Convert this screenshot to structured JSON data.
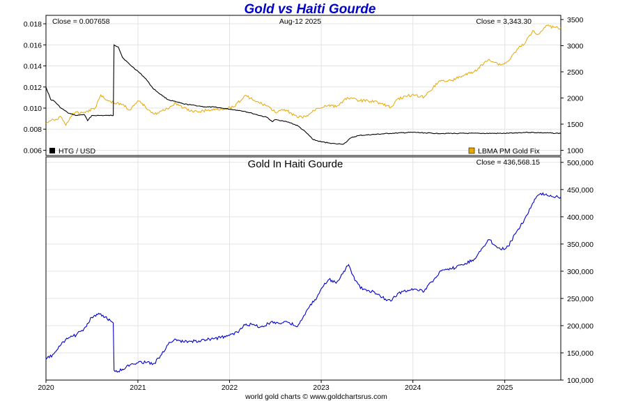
{
  "chart_data": [
    {
      "type": "line",
      "title": "Gold vs Haiti Gourde",
      "date_label": "Aug-12  2025",
      "x_ticks": [
        "2020",
        "2021",
        "2022",
        "2023",
        "2024",
        "2025"
      ],
      "xlim": [
        "2020-01-01",
        "2025-08-12"
      ],
      "left_axis": {
        "ylim": [
          0.0055,
          0.0188
        ],
        "ticks": [
          "0.006",
          "0.008",
          "0.010",
          "0.012",
          "0.014",
          "0.016",
          "0.018"
        ]
      },
      "right_axis": {
        "ylim": [
          900,
          3580
        ],
        "ticks": [
          "1000",
          "1500",
          "2000",
          "2500",
          "3000",
          "3500"
        ]
      },
      "series": [
        {
          "name": "HTG / USD",
          "axis": "left",
          "color": "#000000",
          "close_label": "Close = 0.007658",
          "x": [
            "2020-01-01",
            "2020-01-20",
            "2020-02-01",
            "2020-03-01",
            "2020-04-01",
            "2020-05-01",
            "2020-06-01",
            "2020-06-15",
            "2020-07-01",
            "2020-08-01",
            "2020-09-01",
            "2020-09-25",
            "2020-09-28",
            "2020-10-15",
            "2020-11-01",
            "2020-12-01",
            "2021-01-01",
            "2021-02-01",
            "2021-03-01",
            "2021-04-01",
            "2021-05-01",
            "2021-06-01",
            "2021-07-01",
            "2021-08-01",
            "2021-09-01",
            "2021-10-01",
            "2021-11-01",
            "2021-12-01",
            "2022-01-01",
            "2022-02-01",
            "2022-03-01",
            "2022-04-01",
            "2022-05-01",
            "2022-06-01",
            "2022-06-20",
            "2022-07-01",
            "2022-08-01",
            "2022-09-01",
            "2022-10-01",
            "2022-11-01",
            "2022-12-01",
            "2023-01-01",
            "2023-02-01",
            "2023-03-01",
            "2023-04-01",
            "2023-05-01",
            "2023-06-01",
            "2023-08-01",
            "2023-10-01",
            "2024-01-01",
            "2024-04-01",
            "2024-07-01",
            "2024-10-01",
            "2025-01-01",
            "2025-04-01",
            "2025-08-12"
          ],
          "y": [
            0.012,
            0.0108,
            0.0107,
            0.01,
            0.0095,
            0.0093,
            0.0094,
            0.0088,
            0.0093,
            0.0093,
            0.0093,
            0.0093,
            0.016,
            0.0158,
            0.0148,
            0.0141,
            0.0135,
            0.0128,
            0.0119,
            0.0113,
            0.0108,
            0.0106,
            0.0104,
            0.0103,
            0.0102,
            0.0101,
            0.0101,
            0.01,
            0.0099,
            0.0098,
            0.0097,
            0.0095,
            0.0093,
            0.0091,
            0.0087,
            0.0089,
            0.0088,
            0.0086,
            0.0083,
            0.0077,
            0.007,
            0.0068,
            0.0067,
            0.0066,
            0.0066,
            0.0072,
            0.0074,
            0.0075,
            0.0076,
            0.0077,
            0.0076,
            0.0076,
            0.0076,
            0.0076,
            0.0077,
            0.0076
          ]
        },
        {
          "name": "LBMA PM Gold Fix",
          "axis": "right",
          "color": "#e8a800",
          "close_label": "Close = 3,343.30",
          "x": [
            "2020-01-01",
            "2020-02-01",
            "2020-03-01",
            "2020-03-20",
            "2020-04-15",
            "2020-06-01",
            "2020-07-15",
            "2020-08-06",
            "2020-09-01",
            "2020-10-01",
            "2020-11-01",
            "2020-11-30",
            "2021-01-05",
            "2021-03-08",
            "2021-04-15",
            "2021-06-01",
            "2021-07-01",
            "2021-08-10",
            "2021-10-01",
            "2021-12-01",
            "2022-01-15",
            "2022-03-08",
            "2022-04-15",
            "2022-06-01",
            "2022-07-01",
            "2022-08-15",
            "2022-09-28",
            "2022-11-01",
            "2022-12-15",
            "2023-02-01",
            "2023-03-01",
            "2023-04-15",
            "2023-06-01",
            "2023-08-01",
            "2023-10-05",
            "2023-11-01",
            "2023-12-28",
            "2024-02-15",
            "2024-04-15",
            "2024-06-01",
            "2024-07-15",
            "2024-09-01",
            "2024-10-30",
            "2024-12-15",
            "2025-01-15",
            "2025-02-20",
            "2025-03-20",
            "2025-04-22",
            "2025-05-15",
            "2025-06-15",
            "2025-07-15",
            "2025-08-12"
          ],
          "y": [
            1520,
            1580,
            1640,
            1480,
            1700,
            1730,
            1810,
            2060,
            1960,
            1900,
            1880,
            1770,
            1940,
            1690,
            1760,
            1900,
            1810,
            1730,
            1760,
            1790,
            1830,
            2050,
            1930,
            1850,
            1730,
            1770,
            1630,
            1640,
            1800,
            1870,
            1830,
            2010,
            1950,
            1940,
            1820,
            1980,
            2060,
            2020,
            2330,
            2330,
            2420,
            2500,
            2740,
            2630,
            2700,
            2940,
            3030,
            3290,
            3220,
            3390,
            3350,
            3343
          ]
        }
      ],
      "legend_placement": "bottom of top panel"
    },
    {
      "type": "line",
      "title": "Gold In Haiti Gourde",
      "x_ticks": [
        "2020",
        "2021",
        "2022",
        "2023",
        "2024",
        "2025"
      ],
      "xlim": [
        "2020-01-01",
        "2025-08-12"
      ],
      "right_axis": {
        "ylim": [
          100000,
          510000
        ],
        "ticks": [
          "100,000",
          "150,000",
          "200,000",
          "250,000",
          "300,000",
          "350,000",
          "400,000",
          "450,000",
          "500,000"
        ]
      },
      "series": [
        {
          "name": "Gold In Haiti Gourde",
          "axis": "right",
          "color": "#0000cc",
          "close_label": "Close = 436,568.15",
          "x": [
            "2020-01-01",
            "2020-02-01",
            "2020-03-01",
            "2020-04-01",
            "2020-05-01",
            "2020-06-01",
            "2020-07-01",
            "2020-08-06",
            "2020-09-01",
            "2020-09-25",
            "2020-09-28",
            "2020-10-15",
            "2020-11-01",
            "2020-12-01",
            "2021-01-05",
            "2021-02-01",
            "2021-03-08",
            "2021-04-01",
            "2021-05-01",
            "2021-06-01",
            "2021-07-01",
            "2021-09-01",
            "2021-11-01",
            "2022-01-01",
            "2022-02-01",
            "2022-03-08",
            "2022-04-15",
            "2022-05-15",
            "2022-06-20",
            "2022-07-20",
            "2022-08-15",
            "2022-09-28",
            "2022-10-15",
            "2022-11-15",
            "2022-12-15",
            "2023-01-15",
            "2023-02-01",
            "2023-03-01",
            "2023-04-01",
            "2023-04-20",
            "2023-05-15",
            "2023-06-15",
            "2023-08-01",
            "2023-09-01",
            "2023-10-05",
            "2023-11-01",
            "2023-12-28",
            "2024-02-15",
            "2024-04-15",
            "2024-06-01",
            "2024-07-15",
            "2024-09-01",
            "2024-10-30",
            "2024-12-15",
            "2025-01-15",
            "2025-02-20",
            "2025-03-20",
            "2025-04-22",
            "2025-05-15",
            "2025-06-15",
            "2025-07-15",
            "2025-08-12"
          ],
          "y": [
            138000,
            148000,
            165000,
            178000,
            183000,
            195000,
            215000,
            222000,
            212000,
            205000,
            118000,
            116000,
            120000,
            128000,
            134000,
            132000,
            131000,
            145000,
            165000,
            175000,
            170000,
            172000,
            176000,
            182000,
            188000,
            203000,
            200000,
            198000,
            208000,
            204000,
            208000,
            198000,
            210000,
            235000,
            252000,
            278000,
            285000,
            278000,
            300000,
            312000,
            283000,
            266000,
            262000,
            252000,
            245000,
            259000,
            268000,
            263000,
            298000,
            304000,
            312000,
            322000,
            358000,
            340000,
            346000,
            375000,
            395000,
            425000,
            440000,
            442000,
            436000,
            436568
          ]
        }
      ]
    }
  ],
  "footer": "world gold charts © www.goldchartsrus.com"
}
